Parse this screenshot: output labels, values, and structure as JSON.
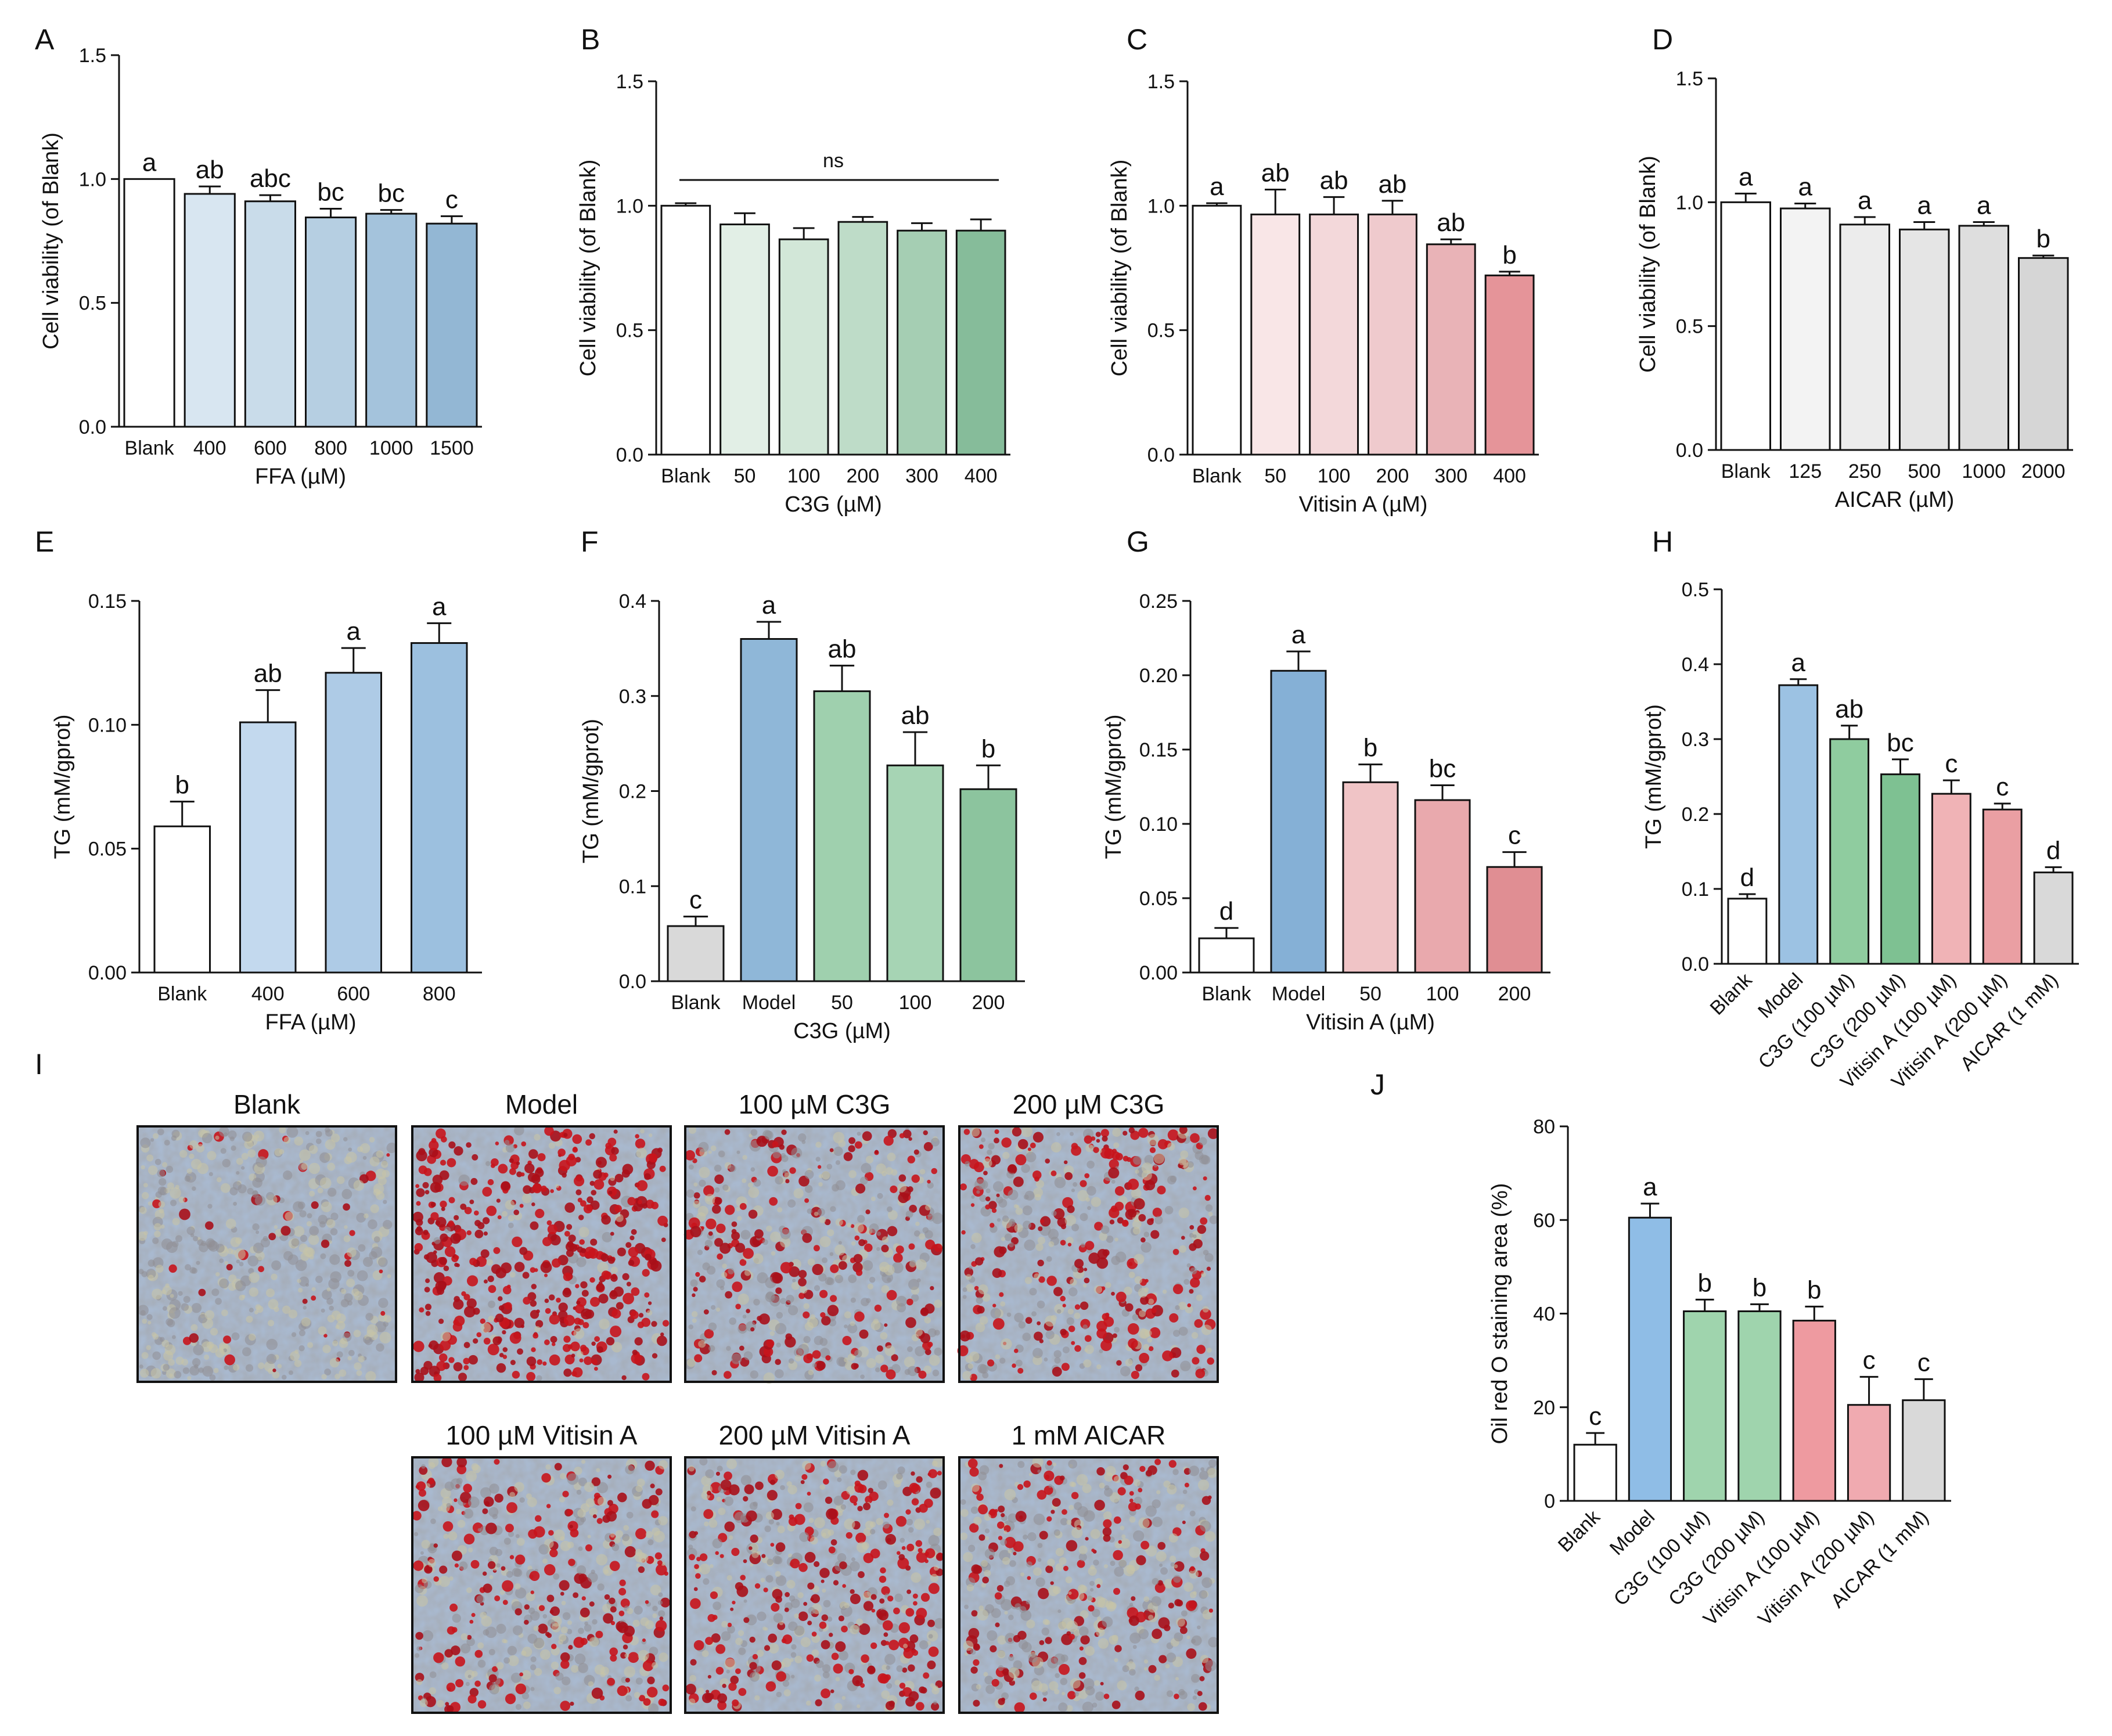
{
  "chart_data": [
    {
      "panel": "A",
      "type": "bar",
      "xlabel": "FFA (µM)",
      "ylabel": "Cell viability (of Blank)",
      "ylim": [
        0,
        1.5
      ],
      "ticks": [
        "0.0",
        "0.5",
        "1.0",
        "1.5"
      ],
      "categories": [
        "Blank",
        "400",
        "600",
        "800",
        "1000",
        "1500"
      ],
      "values": [
        1.0,
        0.94,
        0.91,
        0.845,
        0.86,
        0.82
      ],
      "errors": [
        0.0,
        0.03,
        0.025,
        0.035,
        0.015,
        0.03
      ],
      "letters": [
        "a",
        "ab",
        "abc",
        "bc",
        "bc",
        "c"
      ],
      "colors": [
        "#ffffff",
        "#d8e6f1",
        "#c9dcea",
        "#b6cfe2",
        "#a4c3dc",
        "#93b7d4"
      ]
    },
    {
      "panel": "B",
      "type": "bar",
      "xlabel": "C3G (µM)",
      "ylabel": "Cell viability (of Blank)",
      "ylim": [
        0,
        1.5
      ],
      "ticks": [
        "0.0",
        "0.5",
        "1.0",
        "1.5"
      ],
      "categories": [
        "Blank",
        "50",
        "100",
        "200",
        "300",
        "400"
      ],
      "values": [
        1.0,
        0.925,
        0.865,
        0.935,
        0.9,
        0.9
      ],
      "errors": [
        0.01,
        0.045,
        0.045,
        0.02,
        0.03,
        0.045
      ],
      "letters": [
        "",
        "",
        "",
        "",
        "",
        ""
      ],
      "bracket_label": "ns",
      "colors": [
        "#ffffff",
        "#e2efe6",
        "#d2e7d8",
        "#bedcc8",
        "#a5ceb3",
        "#86bc9a"
      ]
    },
    {
      "panel": "C",
      "type": "bar",
      "xlabel": "Vitisin A (µM)",
      "ylabel": "Cell viability (of Blank)",
      "ylim": [
        0,
        1.5
      ],
      "ticks": [
        "0.0",
        "0.5",
        "1.0",
        "1.5"
      ],
      "categories": [
        "Blank",
        "50",
        "100",
        "200",
        "300",
        "400"
      ],
      "values": [
        1.0,
        0.965,
        0.965,
        0.965,
        0.845,
        0.72
      ],
      "errors": [
        0.01,
        0.1,
        0.07,
        0.055,
        0.02,
        0.015
      ],
      "letters": [
        "a",
        "ab",
        "ab",
        "ab",
        "ab",
        "b"
      ],
      "colors": [
        "#ffffff",
        "#f9e6e7",
        "#f3d8da",
        "#efcacd",
        "#e9b3b7",
        "#e59499"
      ]
    },
    {
      "panel": "D",
      "type": "bar",
      "xlabel": "AICAR (µM)",
      "ylabel": "Cell viability (of Blank)",
      "ylim": [
        0,
        1.5
      ],
      "ticks": [
        "0.0",
        "0.5",
        "1.0",
        "1.5"
      ],
      "categories": [
        "Blank",
        "125",
        "250",
        "500",
        "1000",
        "2000"
      ],
      "values": [
        1.0,
        0.975,
        0.91,
        0.89,
        0.905,
        0.775
      ],
      "errors": [
        0.035,
        0.02,
        0.03,
        0.03,
        0.015,
        0.01
      ],
      "letters": [
        "a",
        "a",
        "a",
        "a",
        "a",
        "b"
      ],
      "colors": [
        "#ffffff",
        "#f3f3f3",
        "#ececec",
        "#e5e5e5",
        "#dedede",
        "#d6d6d6"
      ]
    },
    {
      "panel": "E",
      "type": "bar",
      "xlabel": "FFA (µM)",
      "ylabel": "TG (mM/gprot)",
      "ylim": [
        0,
        0.15
      ],
      "ticks": [
        "0.00",
        "0.05",
        "0.10",
        "0.15"
      ],
      "categories": [
        "Blank",
        "400",
        "600",
        "800"
      ],
      "values": [
        0.059,
        0.101,
        0.121,
        0.133
      ],
      "errors": [
        0.01,
        0.013,
        0.01,
        0.008
      ],
      "letters": [
        "b",
        "ab",
        "a",
        "a"
      ],
      "colors": [
        "#ffffff",
        "#c3d9ee",
        "#aecbe6",
        "#9cc0df"
      ]
    },
    {
      "panel": "F",
      "type": "bar",
      "xlabel": "C3G (µM)",
      "ylabel": "TG (mM/gprot)",
      "ylim": [
        0,
        0.4
      ],
      "ticks": [
        "0.0",
        "0.1",
        "0.2",
        "0.3",
        "0.4"
      ],
      "categories": [
        "Blank",
        "Model",
        "50",
        "100",
        "200"
      ],
      "values": [
        0.058,
        0.36,
        0.305,
        0.227,
        0.202
      ],
      "errors": [
        0.01,
        0.018,
        0.027,
        0.035,
        0.025
      ],
      "letters": [
        "c",
        "a",
        "ab",
        "ab",
        "b"
      ],
      "colors": [
        "#d9d9d9",
        "#8fb7d8",
        "#9fd0ae",
        "#a6d4b4",
        "#8cc49e"
      ]
    },
    {
      "panel": "G",
      "type": "bar",
      "xlabel": "Vitisin A (µM)",
      "ylabel": "TG (mM/gprot)",
      "ylim": [
        0,
        0.25
      ],
      "ticks": [
        "0.00",
        "0.05",
        "0.10",
        "0.15",
        "0.20",
        "0.25"
      ],
      "categories": [
        "Blank",
        "Model",
        "50",
        "100",
        "200"
      ],
      "values": [
        0.023,
        0.203,
        0.128,
        0.116,
        0.071
      ],
      "errors": [
        0.007,
        0.013,
        0.012,
        0.01,
        0.01
      ],
      "letters": [
        "d",
        "a",
        "b",
        "bc",
        "c"
      ],
      "colors": [
        "#ffffff",
        "#85b0d6",
        "#f0c4c6",
        "#e9a9ad",
        "#e08e93"
      ]
    },
    {
      "panel": "H",
      "type": "bar",
      "xlabel": "",
      "ylabel": "TG (mM/gprot)",
      "ylim": [
        0,
        0.5
      ],
      "ticks": [
        "0.0",
        "0.1",
        "0.2",
        "0.3",
        "0.4",
        "0.5"
      ],
      "categories": [
        "Blank",
        "Model",
        "C3G (100 µM)",
        "C3G (200 µM)",
        "Vitisin A (100 µM)",
        "Vitisin A (200 µM)",
        "AICAR (1 mM)"
      ],
      "values": [
        0.087,
        0.372,
        0.3,
        0.253,
        0.227,
        0.206,
        0.122
      ],
      "errors": [
        0.006,
        0.008,
        0.018,
        0.02,
        0.018,
        0.008,
        0.007
      ],
      "letters": [
        "d",
        "a",
        "ab",
        "bc",
        "c",
        "c",
        "d"
      ],
      "colors": [
        "#ffffff",
        "#9cc2e3",
        "#8fcc9f",
        "#7ec192",
        "#f0b3b6",
        "#ea9fa3",
        "#d9d9d9"
      ]
    },
    {
      "panel": "J",
      "type": "bar",
      "xlabel": "",
      "ylabel": "Oil red O staining area (%)",
      "ylim": [
        0,
        80
      ],
      "ticks": [
        "0",
        "20",
        "40",
        "60",
        "80"
      ],
      "categories": [
        "Blank",
        "Model",
        "C3G (100 µM)",
        "C3G (200 µM)",
        "Vitisin A (100 µM)",
        "Vitisin A (200 µM)",
        "AICAR (1 mM)"
      ],
      "values": [
        12,
        60.5,
        40.5,
        40.5,
        38.5,
        20.5,
        21.5
      ],
      "errors": [
        2.5,
        3.0,
        2.5,
        1.5,
        3.0,
        6.0,
        4.5
      ],
      "letters": [
        "c",
        "a",
        "b",
        "b",
        "b",
        "c",
        "c"
      ],
      "colors": [
        "#ffffff",
        "#8fbde6",
        "#9fd4ad",
        "#9fd4ad",
        "#ee9aa0",
        "#f0aab0",
        "#d9d9d9"
      ]
    }
  ],
  "micrographs": {
    "panel": "I",
    "titles": [
      "Blank",
      "Model",
      "100 µM C3G",
      "200 µM C3G",
      "100 µM Vitisin A",
      "200 µM Vitisin A",
      "1 mM AICAR"
    ],
    "stain_density": [
      0.08,
      0.9,
      0.42,
      0.5,
      0.4,
      0.5,
      0.36
    ]
  }
}
